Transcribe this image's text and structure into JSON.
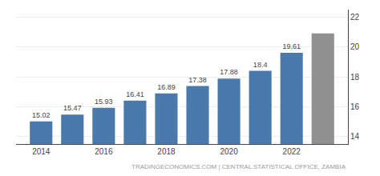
{
  "chart_data": {
    "type": "bar",
    "x": [
      2014,
      2015,
      2016,
      2017,
      2018,
      2019,
      2020,
      2021,
      2022,
      2023
    ],
    "values": [
      15.02,
      15.47,
      15.93,
      16.41,
      16.89,
      17.38,
      17.88,
      18.4,
      19.61,
      20.9
    ],
    "colors": [
      "#4a7aab",
      "#4a7aab",
      "#4a7aab",
      "#4a7aab",
      "#4a7aab",
      "#4a7aab",
      "#4a7aab",
      "#4a7aab",
      "#4a7aab",
      "#909090"
    ],
    "data_labels": true,
    "value_labels": [
      "15.02",
      "15.47",
      "15.93",
      "16.41",
      "16.89",
      "17.38",
      "17.88",
      "18.4",
      "19.61",
      null
    ],
    "xlim": [
      2013.2,
      2023.8
    ],
    "xticks": [
      2014,
      2016,
      2018,
      2020,
      2022
    ],
    "ylim": [
      13.5,
      22.5
    ],
    "yticks": [
      14,
      16,
      18,
      20,
      22
    ],
    "grid": true,
    "annotations": [
      "TRADINGECONOMICS.COM | CENTRAL STATISTICAL OFFICE, ZAMBIA"
    ]
  }
}
